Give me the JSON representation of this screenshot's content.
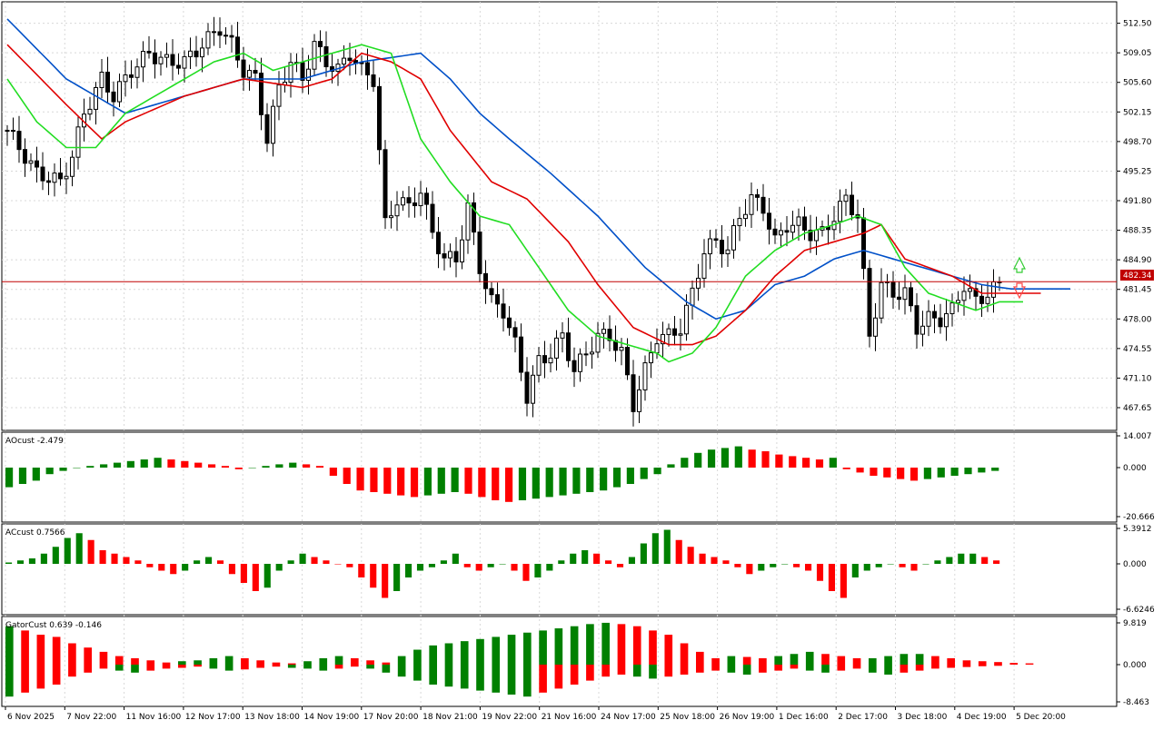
{
  "colors": {
    "bull": "#008000",
    "bear": "#ff0000",
    "candle_up": "#ffffff",
    "candle_down": "#000000",
    "jaw": "#0050c8",
    "teeth": "#e00000",
    "lips": "#22dd22",
    "price_line": "#c00000",
    "grid": "#d8d8d8"
  },
  "main": {
    "price_label": "482.34",
    "price_ticks": [
      "512.50",
      "509.05",
      "505.60",
      "502.15",
      "498.70",
      "495.25",
      "491.80",
      "488.35",
      "484.90",
      "481.45",
      "478.00",
      "474.55",
      "471.10",
      "467.65"
    ],
    "current_price": 482.34,
    "ylim": [
      465.0,
      515.0
    ]
  },
  "ao": {
    "title": "AOcust -2.479",
    "ticks": [
      "14.007",
      "0.000",
      "-20.666"
    ]
  },
  "ac": {
    "title": "ACcust 0.7566",
    "ticks": [
      "5.3912",
      "0.000",
      "-6.6246"
    ]
  },
  "gator": {
    "title": "GatorCust 0.639 -0.146",
    "ticks": [
      "9.819",
      "0.000",
      "-8.463"
    ]
  },
  "time_labels": [
    "6 Nov 2025",
    "7 Nov 22:00",
    "11 Nov 16:00",
    "12 Nov 17:00",
    "13 Nov 18:00",
    "14 Nov 19:00",
    "17 Nov 20:00",
    "18 Nov 21:00",
    "19 Nov 22:00",
    "21 Nov 16:00",
    "24 Nov 17:00",
    "25 Nov 18:00",
    "26 Nov 19:00",
    "1 Dec 16:00",
    "2 Dec 17:00",
    "3 Dec 18:00",
    "4 Dec 19:00",
    "5 Dec 20:00"
  ],
  "chart_data": {
    "type": "candlestick",
    "anchors": [
      [
        0,
        500
      ],
      [
        5,
        495
      ],
      [
        9,
        494
      ],
      [
        11,
        497
      ],
      [
        13,
        502
      ],
      [
        16,
        506
      ],
      [
        18,
        504
      ],
      [
        21,
        507
      ],
      [
        24,
        509
      ],
      [
        27,
        508
      ],
      [
        30,
        508
      ],
      [
        33,
        510
      ],
      [
        36,
        512
      ],
      [
        38,
        510
      ],
      [
        40,
        507
      ],
      [
        42,
        506
      ],
      [
        44,
        499
      ],
      [
        46,
        505
      ],
      [
        48,
        508
      ],
      [
        50,
        506
      ],
      [
        52,
        510
      ],
      [
        54,
        508
      ],
      [
        56,
        507
      ],
      [
        58,
        509
      ],
      [
        60,
        507
      ],
      [
        62,
        506
      ],
      [
        64,
        489
      ],
      [
        66,
        492
      ],
      [
        68,
        491
      ],
      [
        70,
        493
      ],
      [
        72,
        488
      ],
      [
        74,
        485
      ],
      [
        76,
        485
      ],
      [
        78,
        491
      ],
      [
        80,
        484
      ],
      [
        82,
        480
      ],
      [
        84,
        479
      ],
      [
        86,
        475
      ],
      [
        88,
        469
      ],
      [
        90,
        473
      ],
      [
        92,
        474
      ],
      [
        94,
        476
      ],
      [
        96,
        472
      ],
      [
        98,
        474
      ],
      [
        100,
        476
      ],
      [
        102,
        476
      ],
      [
        104,
        474
      ],
      [
        106,
        468
      ],
      [
        108,
        472
      ],
      [
        110,
        476
      ],
      [
        112,
        476
      ],
      [
        114,
        477
      ],
      [
        116,
        481
      ],
      [
        118,
        486
      ],
      [
        120,
        487
      ],
      [
        122,
        486
      ],
      [
        124,
        490
      ],
      [
        126,
        492
      ],
      [
        128,
        491
      ],
      [
        130,
        487
      ],
      [
        132,
        489
      ],
      [
        134,
        489
      ],
      [
        136,
        488
      ],
      [
        138,
        488
      ],
      [
        140,
        490
      ],
      [
        142,
        492
      ],
      [
        144,
        490
      ],
      [
        146,
        476
      ],
      [
        148,
        482
      ],
      [
        150,
        481
      ],
      [
        152,
        481
      ],
      [
        154,
        477
      ],
      [
        156,
        478
      ],
      [
        158,
        478
      ],
      [
        160,
        479
      ],
      [
        162,
        482
      ],
      [
        164,
        480
      ],
      [
        166,
        481
      ],
      [
        168,
        482
      ]
    ],
    "jaw_pts": [
      [
        0,
        513
      ],
      [
        10,
        506
      ],
      [
        20,
        502
      ],
      [
        30,
        504
      ],
      [
        40,
        506
      ],
      [
        50,
        506
      ],
      [
        55,
        507
      ],
      [
        60,
        508
      ],
      [
        70,
        509
      ],
      [
        75,
        506
      ],
      [
        80,
        502
      ],
      [
        85,
        499
      ],
      [
        92,
        495
      ],
      [
        100,
        490
      ],
      [
        108,
        484
      ],
      [
        115,
        480
      ],
      [
        120,
        478
      ],
      [
        125,
        479
      ],
      [
        130,
        482
      ],
      [
        135,
        483
      ],
      [
        140,
        485
      ],
      [
        145,
        486
      ],
      [
        150,
        485
      ],
      [
        155,
        484
      ],
      [
        160,
        483
      ],
      [
        165,
        482
      ],
      [
        170,
        481.5
      ],
      [
        180,
        481.5
      ]
    ],
    "teeth_pts": [
      [
        0,
        510
      ],
      [
        10,
        503
      ],
      [
        16,
        499
      ],
      [
        20,
        501
      ],
      [
        30,
        504
      ],
      [
        40,
        506
      ],
      [
        50,
        505
      ],
      [
        55,
        506
      ],
      [
        60,
        509
      ],
      [
        65,
        508
      ],
      [
        70,
        506
      ],
      [
        75,
        500
      ],
      [
        82,
        494
      ],
      [
        88,
        492
      ],
      [
        95,
        487
      ],
      [
        100,
        482
      ],
      [
        106,
        477
      ],
      [
        112,
        475
      ],
      [
        116,
        475
      ],
      [
        120,
        476
      ],
      [
        125,
        479
      ],
      [
        130,
        483
      ],
      [
        135,
        486
      ],
      [
        140,
        487
      ],
      [
        145,
        488
      ],
      [
        148,
        489
      ],
      [
        152,
        485
      ],
      [
        156,
        484
      ],
      [
        160,
        483
      ],
      [
        165,
        481
      ],
      [
        170,
        481
      ],
      [
        175,
        481
      ]
    ],
    "lips_pts": [
      [
        0,
        506
      ],
      [
        5,
        501
      ],
      [
        10,
        498
      ],
      [
        15,
        498
      ],
      [
        20,
        502
      ],
      [
        25,
        504
      ],
      [
        30,
        506
      ],
      [
        35,
        508
      ],
      [
        40,
        509
      ],
      [
        45,
        507
      ],
      [
        50,
        508
      ],
      [
        55,
        509
      ],
      [
        60,
        510
      ],
      [
        65,
        509
      ],
      [
        70,
        499
      ],
      [
        75,
        494
      ],
      [
        80,
        490
      ],
      [
        85,
        489
      ],
      [
        90,
        484
      ],
      [
        95,
        479
      ],
      [
        100,
        476
      ],
      [
        105,
        475
      ],
      [
        110,
        474
      ],
      [
        112,
        473
      ],
      [
        116,
        474
      ],
      [
        120,
        477
      ],
      [
        125,
        483
      ],
      [
        130,
        486
      ],
      [
        135,
        488
      ],
      [
        140,
        489
      ],
      [
        144,
        490
      ],
      [
        148,
        489
      ],
      [
        152,
        484
      ],
      [
        156,
        481
      ],
      [
        160,
        480
      ],
      [
        164,
        479
      ],
      [
        168,
        480
      ],
      [
        172,
        480
      ]
    ],
    "ao_values": [
      -12,
      -10,
      -8,
      -4,
      -2,
      0,
      1,
      2,
      3,
      4,
      5,
      6,
      5,
      4,
      3,
      2,
      1,
      -1,
      0,
      1,
      2,
      3,
      2,
      1,
      -5,
      -10,
      -14,
      -15,
      -16,
      -17,
      -18,
      -17,
      -16,
      -15,
      -16,
      -18,
      -20,
      -21,
      -20,
      -19,
      -18,
      -17,
      -16,
      -15,
      -14,
      -12,
      -10,
      -7,
      -4,
      2,
      6,
      9,
      11,
      12,
      13,
      11,
      10,
      8,
      7,
      6,
      5,
      6,
      -1,
      -3,
      -5,
      -6,
      -7,
      -8,
      -7,
      -6,
      -5,
      -4,
      -3,
      -2
    ],
    "ac_values": [
      0.2,
      0.5,
      0.8,
      1.5,
      2.5,
      3.8,
      4.5,
      3.5,
      2,
      1.5,
      1,
      0.5,
      -0.5,
      -1,
      -1.5,
      -1,
      0.5,
      1,
      0.5,
      -1.5,
      -2.8,
      -4,
      -3.5,
      -1,
      0.5,
      1.5,
      1,
      0.5,
      0,
      -0.5,
      -2,
      -3.5,
      -5,
      -4,
      -2,
      -1,
      -0.5,
      0.5,
      1.5,
      -0.5,
      -1,
      -0.5,
      0,
      -1,
      -2.5,
      -2,
      -1,
      0.5,
      1.5,
      2,
      1.5,
      0.5,
      -0.5,
      1,
      3,
      4.5,
      5,
      3.5,
      2.5,
      1.5,
      1,
      0.5,
      -0.5,
      -1.5,
      -1,
      -0.5,
      0,
      -0.5,
      -1,
      -2.5,
      -4,
      -5,
      -2,
      -1,
      -0.5,
      0,
      -0.5,
      -1,
      0,
      0.5,
      1,
      1.5,
      1.5,
      1,
      0.5
    ],
    "gator_up": [
      9,
      8,
      7,
      6.5,
      5,
      4,
      3,
      2,
      1.5,
      1,
      0.5,
      0.8,
      1,
      1.5,
      2,
      1.5,
      1,
      0.5,
      0.3,
      0.8,
      1.5,
      2,
      1.5,
      1,
      0.5,
      2,
      3.5,
      4.5,
      5,
      5.5,
      6,
      6.5,
      7,
      7.5,
      8,
      8.5,
      9,
      9.5,
      9.8,
      9.5,
      9,
      8,
      7,
      5,
      3,
      1.5,
      2,
      1.8,
      1.5,
      2,
      2.5,
      3,
      2.5,
      2,
      1.5,
      1.5,
      2,
      2.5,
      2.5,
      2,
      1.5,
      1,
      0.8,
      0.6,
      0.4,
      0.3
    ],
    "gator_down": [
      -8,
      -7,
      -6,
      -5,
      -3,
      -2,
      -1,
      -1.5,
      -2,
      -1.5,
      -1,
      -0.8,
      -0.5,
      -1,
      -1.5,
      -1.2,
      -0.8,
      -0.5,
      -0.8,
      -1,
      -1.5,
      -1,
      -0.5,
      -1,
      -2,
      -3,
      -4,
      -5,
      -5.5,
      -6,
      -6.5,
      -7,
      -7.5,
      -8,
      -7,
      -6,
      -5,
      -4,
      -3,
      -2.5,
      -3,
      -3.5,
      -3,
      -2.5,
      -2,
      -1.5,
      -2,
      -2.5,
      -2,
      -1.5,
      -1,
      -1.5,
      -2,
      -1.5,
      -1,
      -2,
      -2.5,
      -2,
      -1.5,
      -1,
      -0.8,
      -0.6,
      -0.4,
      -0.3
    ]
  }
}
